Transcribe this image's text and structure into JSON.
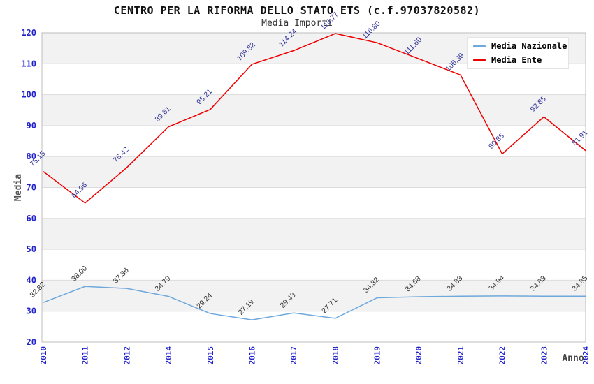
{
  "chart_data": {
    "type": "line",
    "title": "CENTRO PER LA RIFORMA DELLO STATO ETS (c.f.97037820582)",
    "subtitle": "Media Importi",
    "xlabel": "Anno",
    "ylabel": "Media",
    "ylim": [
      20,
      120
    ],
    "ytick_step": 10,
    "grid": true,
    "legend_position": "top-right",
    "colors": {
      "plot_band_fill": "#F2F2F2",
      "gridline": "#DCDCDC",
      "plot_border": "#BDBDBD",
      "axis_tick_label": "#2222CC",
      "axis_title": "#555555",
      "title_text": "#111111",
      "subtitle_text": "#333333"
    },
    "categories": [
      "2010",
      "2011",
      "2012",
      "2014",
      "2015",
      "2016",
      "2017",
      "2018",
      "2019",
      "2020",
      "2021",
      "2022",
      "2023",
      "2024"
    ],
    "series": [
      {
        "name": "Media Nazionale",
        "color": "#6FA8DC",
        "label_color": "#333333",
        "values": [
          32.82,
          38.0,
          37.36,
          34.79,
          29.24,
          27.19,
          29.43,
          27.71,
          34.32,
          34.68,
          34.83,
          34.94,
          34.83,
          34.85
        ],
        "labels": [
          "32.82",
          "38.00",
          "37.36",
          "34.79",
          "29.24",
          "27.19",
          "29.43",
          "27.71",
          "34.32",
          "34.68",
          "34.83",
          "34.94",
          "34.83",
          "34.85"
        ]
      },
      {
        "name": "Media Ente",
        "color": "#EE0000",
        "label_color": "#333399",
        "values": [
          75.15,
          64.96,
          76.42,
          89.61,
          95.21,
          109.82,
          114.24,
          119.77,
          116.8,
          111.6,
          106.39,
          80.85,
          92.85,
          81.91
        ],
        "labels": [
          "75.15",
          "64.96",
          "76.42",
          "89.61",
          "95.21",
          "109.82",
          "114.24",
          "119.77",
          "116.80",
          "111.60",
          "106.39",
          "80.85",
          "92.85",
          "81.91"
        ]
      }
    ]
  }
}
